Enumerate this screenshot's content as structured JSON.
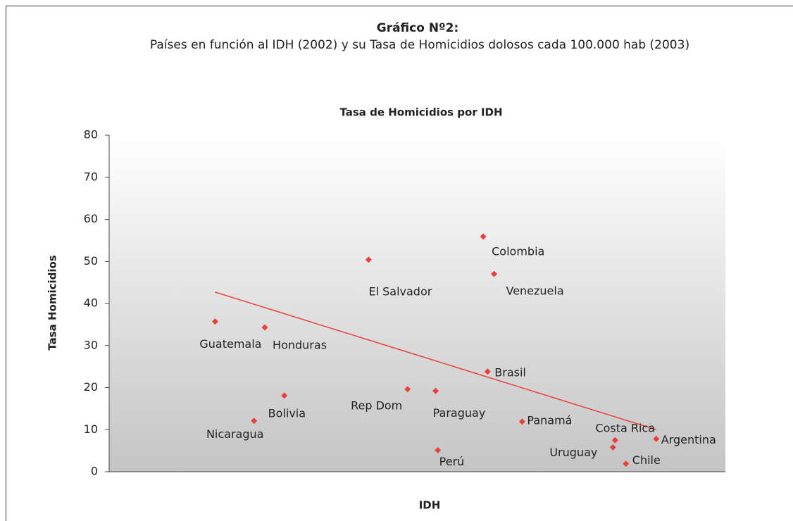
{
  "chart_data": {
    "type": "scatter",
    "title": "Gráfico Nº2:",
    "subtitle": "Países en función al IDH (2002) y su Tasa de Homicidios dolosos cada 100.000 hab (2003)",
    "chart_title": "Tasa de Homicidios por IDH",
    "xlabel": "IDH",
    "ylabel": "Tasa Homicidios",
    "color": "#e8403a",
    "labels": [
      "Guatemala",
      "Honduras",
      "Colombia",
      "El Salvador",
      "Venezuela",
      "Brasil",
      "Rep Dom",
      "Paraguay",
      "Bolivia",
      "Nicaragua",
      "Panamá",
      "Costa Rica",
      "Argentina",
      "Uruguay",
      "Perú",
      "Chile"
    ],
    "x": [
      0.649,
      0.672,
      0.773,
      0.72,
      0.778,
      0.775,
      0.738,
      0.751,
      0.681,
      0.667,
      0.791,
      0.834,
      0.853,
      0.833,
      0.752,
      0.839
    ],
    "values": [
      35.7,
      34.3,
      55.9,
      50.4,
      47,
      23.8,
      19.6,
      19.2,
      18.1,
      12.1,
      11.9,
      7.5,
      7.8,
      5.8,
      5.1,
      1.9
    ],
    "trendline": {
      "x": [
        0.649,
        0.853
      ],
      "y": [
        42.7,
        10
      ]
    },
    "xlim": [
      0.6,
      0.885
    ],
    "ylim": [
      0,
      80
    ],
    "yticks": [
      0,
      10,
      20,
      30,
      40,
      50,
      60,
      70,
      80
    ]
  }
}
